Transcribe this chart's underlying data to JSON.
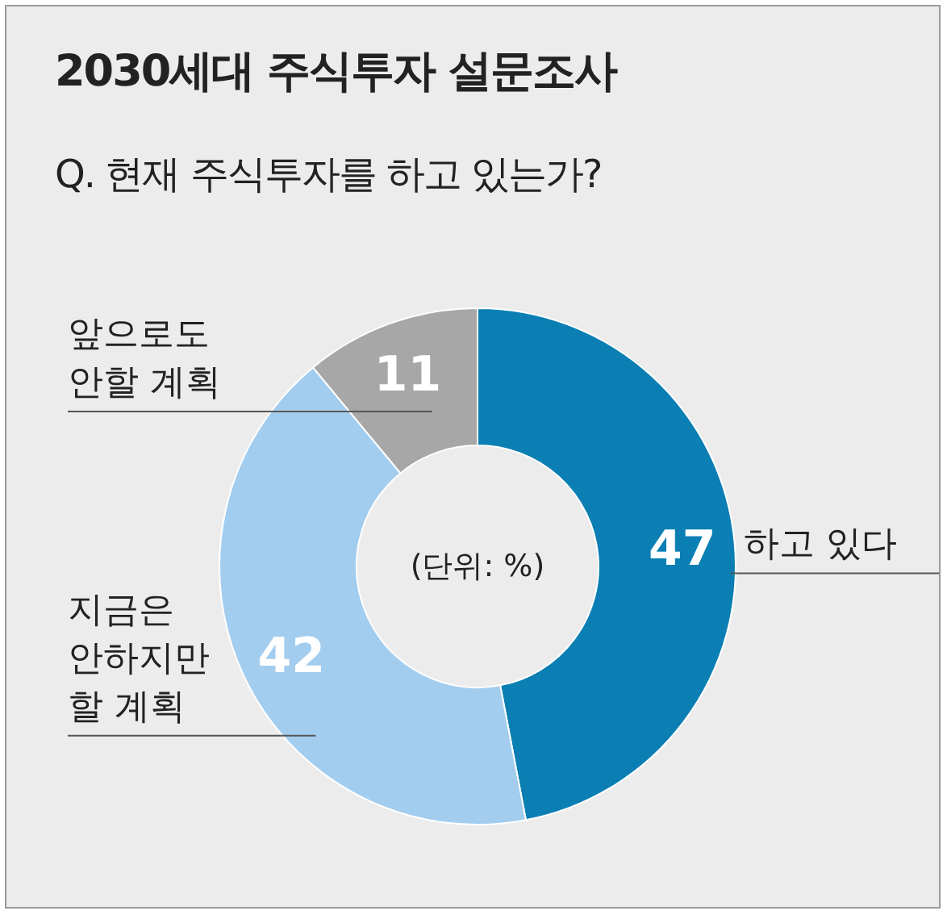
{
  "chart_data": {
    "type": "donut",
    "title": "2030세대 주식투자 설문조사",
    "subtitle": "Q. 현재 주식투자를 하고 있는가?",
    "categories": [
      "하고 있다",
      "지금은 안하지만 할 계획",
      "앞으로도 안할 계획"
    ],
    "values": [
      47,
      42,
      11
    ],
    "colors": [
      "#0b7fb3",
      "#a3cdef",
      "#a7a7a7"
    ],
    "data_labels": true,
    "annotations": [
      "(단위: %)"
    ]
  }
}
